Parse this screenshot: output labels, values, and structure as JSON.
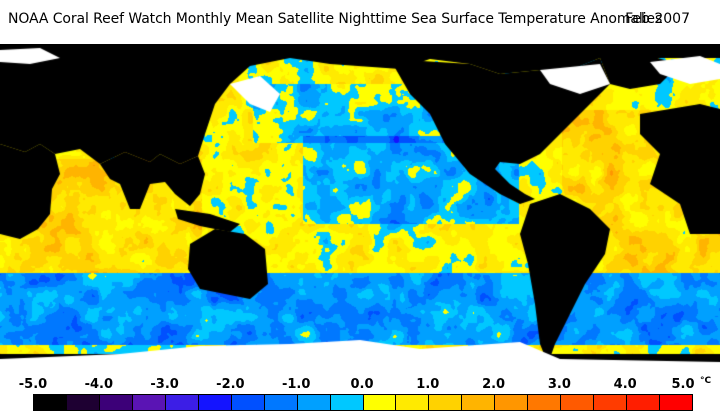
{
  "title": {
    "text": "NOAA Coral Reef Watch Monthly Mean Satellite Nighttime Sea Surface Temperature Anomalies",
    "date": "Feb 2007"
  },
  "legend": {
    "ticks": [
      "-5.0",
      "-4.0",
      "-3.0",
      "-2.0",
      "-1.0",
      "0.0",
      "1.0",
      "2.0",
      "3.0",
      "4.0",
      "5.0"
    ],
    "unit": "°C",
    "colors": [
      "#000000",
      "#1e0032",
      "#3c0078",
      "#5a14b4",
      "#3c1ee6",
      "#1414ff",
      "#0050ff",
      "#0078ff",
      "#00a0ff",
      "#00c8ff",
      "#ffff00",
      "#ffea00",
      "#ffd200",
      "#ffb400",
      "#ff9600",
      "#ff7800",
      "#ff5a00",
      "#ff3c00",
      "#ff1e00",
      "#ff0000"
    ]
  },
  "map": {
    "land_color": "#000000",
    "ice_color": "#ffffff"
  }
}
